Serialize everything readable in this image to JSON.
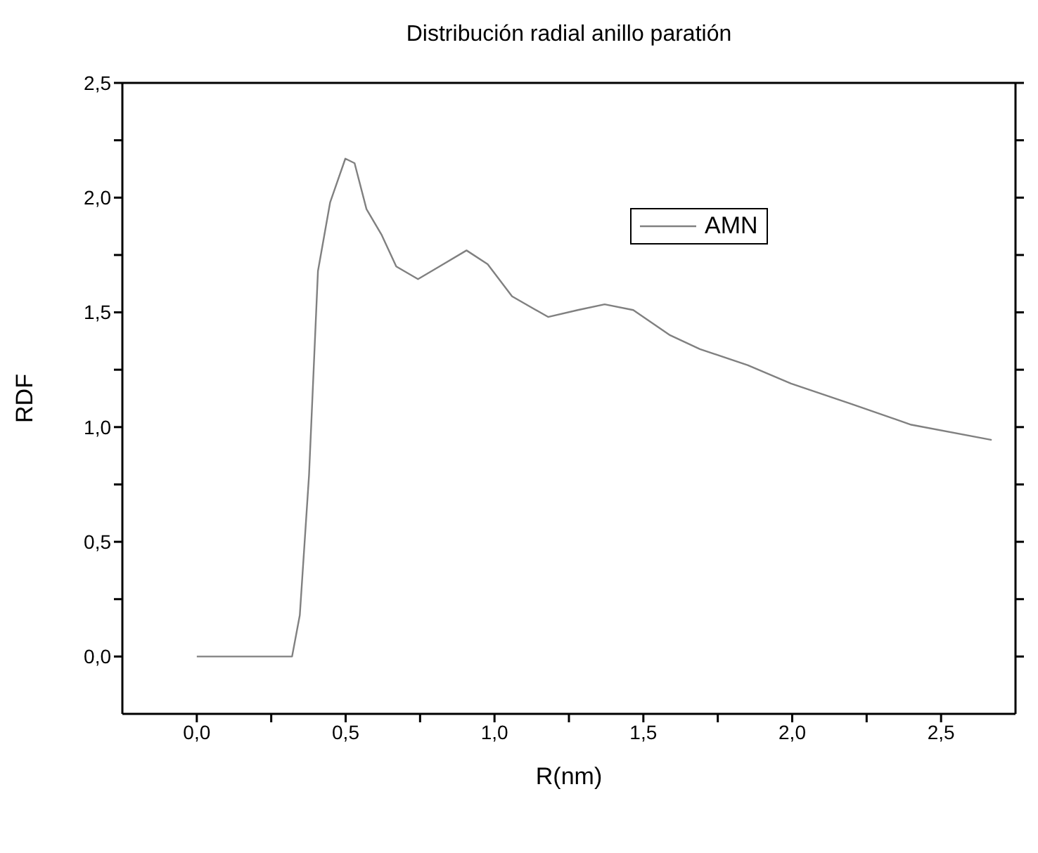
{
  "chart_data": {
    "type": "line",
    "title": "Distribución radial anillo paratión",
    "xlabel": "R(nm)",
    "ylabel": "RDF",
    "xlim": [
      -0.25,
      2.75
    ],
    "ylim": [
      -0.25,
      2.5
    ],
    "xticks": [
      {
        "value": 0,
        "label": "0,0"
      },
      {
        "value": 0.25,
        "label": null
      },
      {
        "value": 0.5,
        "label": "0,5"
      },
      {
        "value": 0.75,
        "label": null
      },
      {
        "value": 1,
        "label": "1,0"
      },
      {
        "value": 1.25,
        "label": null
      },
      {
        "value": 1.5,
        "label": "1,5"
      },
      {
        "value": 1.75,
        "label": null
      },
      {
        "value": 2,
        "label": "2,0"
      },
      {
        "value": 2.25,
        "label": null
      },
      {
        "value": 2.5,
        "label": "2,5"
      }
    ],
    "yticks": [
      {
        "value": 0,
        "label": "0,0"
      },
      {
        "value": 0.25,
        "label": null
      },
      {
        "value": 0.5,
        "label": "0,5"
      },
      {
        "value": 0.75,
        "label": null
      },
      {
        "value": 1,
        "label": "1,0"
      },
      {
        "value": 1.25,
        "label": null
      },
      {
        "value": 1.5,
        "label": "1,5"
      },
      {
        "value": 1.75,
        "label": null
      },
      {
        "value": 2,
        "label": "2,0"
      },
      {
        "value": 2.25,
        "label": null
      },
      {
        "value": 2.5,
        "label": "2,5"
      }
    ],
    "legend": "top right",
    "marker": "none",
    "line_style": "solid",
    "series": [
      {
        "name": "AMN",
        "color": "#808080",
        "x": [
          0,
          0.32,
          0.346,
          0.377,
          0.407,
          0.448,
          0.499,
          0.53,
          0.57,
          0.62,
          0.67,
          0.743,
          0.815,
          0.906,
          0.977,
          1.059,
          1.18,
          1.28,
          1.37,
          1.466,
          1.59,
          1.69,
          1.85,
          1.996,
          2.2,
          2.4,
          2.67
        ],
        "values": [
          0,
          0,
          0.18,
          0.79,
          1.68,
          1.98,
          2.17,
          2.15,
          1.95,
          1.84,
          1.7,
          1.645,
          1.7,
          1.77,
          1.71,
          1.57,
          1.48,
          1.51,
          1.535,
          1.51,
          1.4,
          1.34,
          1.27,
          1.19,
          1.1,
          1.01,
          0.944
        ]
      }
    ]
  }
}
